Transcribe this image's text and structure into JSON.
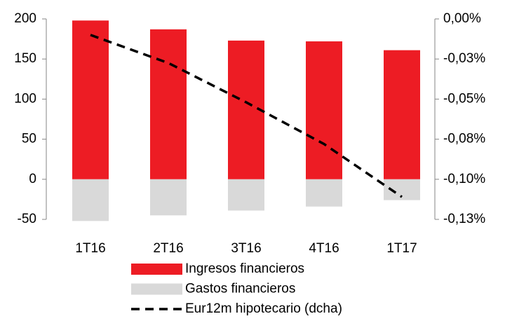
{
  "chart_data": {
    "type": "bar",
    "categories": [
      "1T16",
      "2T16",
      "3T16",
      "4T16",
      "1T17"
    ],
    "series": [
      {
        "name": "Ingresos financieros",
        "color": "#ed1c24",
        "values": [
          198,
          187,
          173,
          172,
          161
        ]
      },
      {
        "name": "Gastos financieros",
        "color": "#d9d9d9",
        "values": [
          -52,
          -45,
          -39,
          -34,
          -26
        ]
      },
      {
        "name": "Eur12m hipotecario (dcha)",
        "color": "#000000",
        "type": "line",
        "dashed": true,
        "axis": "y2",
        "values": [
          -0.01,
          -0.0275,
          -0.052,
          -0.078,
          -0.111
        ]
      }
    ],
    "ylim": [
      -50,
      200
    ],
    "yticks": [
      -50,
      0,
      50,
      100,
      150,
      200
    ],
    "y2lim": [
      -0.125,
      0
    ],
    "y2ticks": [
      {
        "value": -0.125,
        "label": "-0,13%"
      },
      {
        "value": -0.1,
        "label": "-0,10%"
      },
      {
        "value": -0.075,
        "label": "-0,08%"
      },
      {
        "value": -0.05,
        "label": "-0,05%"
      },
      {
        "value": -0.025,
        "label": "-0,03%"
      },
      {
        "value": 0,
        "label": "0,00%"
      }
    ],
    "legend": "bottom"
  }
}
